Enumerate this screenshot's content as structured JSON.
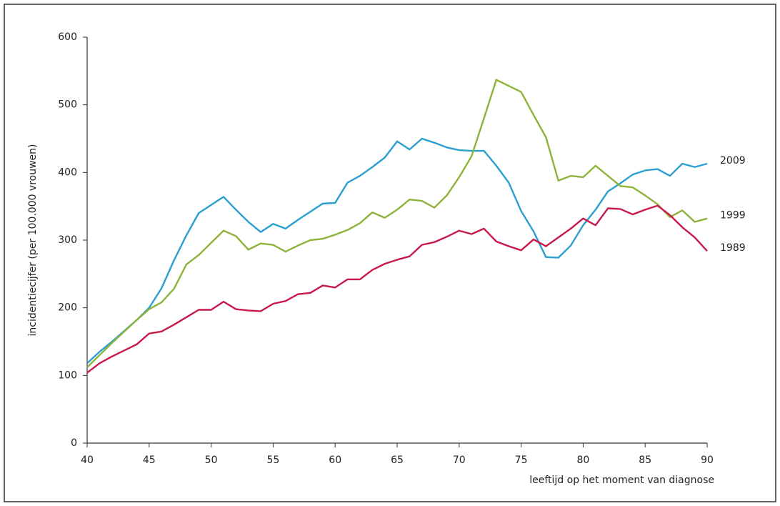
{
  "chart_data": {
    "type": "line",
    "y_label": "incidentiecijfer (per 100.000 vrouwen)",
    "x_label": "leeftijd op het moment van diagnose",
    "x": [
      40,
      41,
      42,
      43,
      44,
      45,
      46,
      47,
      48,
      49,
      50,
      51,
      52,
      53,
      54,
      55,
      56,
      57,
      58,
      59,
      60,
      61,
      62,
      63,
      64,
      65,
      66,
      67,
      68,
      69,
      70,
      71,
      72,
      73,
      74,
      75,
      76,
      77,
      78,
      79,
      80,
      81,
      82,
      83,
      84,
      85,
      86,
      87,
      88,
      89,
      90
    ],
    "series": [
      {
        "name": "2009",
        "color": "#2a9fd0",
        "values": [
          118,
          135,
          150,
          166,
          182,
          200,
          229,
          270,
          307,
          340,
          352,
          364,
          345,
          327,
          312,
          324,
          317,
          330,
          342,
          354,
          355,
          385,
          395,
          408,
          422,
          446,
          434,
          450,
          444,
          437,
          433,
          432,
          432,
          410,
          385,
          343,
          313,
          275,
          274,
          292,
          322,
          345,
          372,
          384,
          397,
          403,
          405,
          395,
          413,
          408,
          413
        ]
      },
      {
        "name": "1999",
        "color": "#8db33a",
        "values": [
          112,
          130,
          148,
          165,
          182,
          198,
          208,
          228,
          264,
          278,
          296,
          314,
          306,
          286,
          295,
          293,
          283,
          292,
          300,
          302,
          308,
          315,
          325,
          341,
          333,
          345,
          360,
          358,
          348,
          366,
          393,
          424,
          480,
          537,
          528,
          519,
          485,
          452,
          388,
          395,
          393,
          410,
          395,
          380,
          378,
          366,
          353,
          334,
          344,
          327,
          332
        ]
      },
      {
        "name": "1989",
        "color": "#c8194b",
        "values": [
          104,
          118,
          128,
          137,
          146,
          162,
          165,
          175,
          186,
          197,
          197,
          209,
          198,
          196,
          195,
          206,
          210,
          220,
          222,
          233,
          230,
          242,
          242,
          256,
          265,
          271,
          276,
          293,
          297,
          305,
          314,
          309,
          317,
          298,
          291,
          285,
          301,
          291,
          304,
          317,
          332,
          322,
          347,
          346,
          338,
          345,
          351,
          337,
          319,
          304,
          284
        ]
      }
    ],
    "xlim": [
      40,
      90
    ],
    "xticks": [
      40,
      45,
      50,
      55,
      60,
      65,
      70,
      75,
      80,
      85,
      90
    ],
    "ylim": [
      0,
      600
    ],
    "yticks": [
      0,
      100,
      200,
      300,
      400,
      500,
      600
    ]
  }
}
